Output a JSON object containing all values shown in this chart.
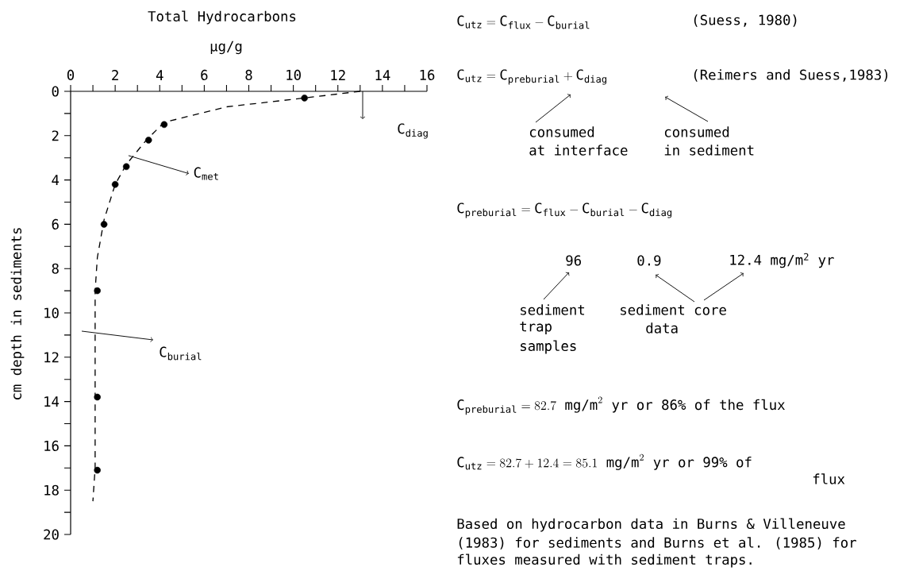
{
  "chart_data": {
    "type": "scatter",
    "title": "Total Hydrocarbons",
    "xlabel": "μg/g",
    "ylabel": "cm depth in sediments",
    "xlim": [
      0,
      16
    ],
    "ylim": [
      20,
      0
    ],
    "xticks": [
      0,
      {
        "value": 1,
        "label": null
      },
      2,
      {
        "value": 3,
        "label": null
      },
      4,
      {
        "value": 5,
        "label": null
      },
      6,
      {
        "value": 7,
        "label": null
      },
      8,
      {
        "value": 9,
        "label": null
      },
      10,
      {
        "value": 11,
        "label": null
      },
      12,
      {
        "value": 13,
        "label": null
      },
      14,
      {
        "value": 15,
        "label": null
      },
      16
    ],
    "yticks": [
      0,
      {
        "value": 1,
        "label": null
      },
      2,
      {
        "value": 3,
        "label": null
      },
      4,
      {
        "value": 5,
        "label": null
      },
      6,
      {
        "value": 7,
        "label": null
      },
      8,
      {
        "value": 9,
        "label": null
      },
      10,
      {
        "value": 11,
        "label": null
      },
      12,
      {
        "value": 13,
        "label": null
      },
      14,
      {
        "value": 15,
        "label": null
      },
      16,
      {
        "value": 17,
        "label": null
      },
      18,
      {
        "value": 19,
        "label": null
      },
      20
    ],
    "grid": false,
    "marker": "circle",
    "series": [
      {
        "type": "line",
        "line_style": "dashed",
        "marker": "none",
        "color": "#000000",
        "x": [
          13,
          10.5,
          7,
          4.2,
          3.4,
          2.5,
          2.0,
          1.5,
          1.2,
          1.1,
          1.1,
          1.0
        ],
        "values": [
          0,
          0.3,
          0.7,
          1.4,
          2.2,
          3.3,
          4.2,
          5.8,
          7.5,
          9,
          17,
          18.5
        ]
      },
      {
        "color": "#000000",
        "x": [
          10.5,
          4.2,
          3.5,
          2.5,
          2.0,
          1.5,
          1.2,
          1.2,
          1.2
        ],
        "values": [
          0.3,
          1.5,
          2.2,
          3.4,
          4.2,
          6.0,
          9.0,
          13.8,
          17.1
        ]
      }
    ],
    "annotations": [
      {
        "text": "C$_{met}$",
        "x": 2.6,
        "y": 2.9
      },
      "C$_{burial}$",
      "C$_{diag}$",
      "\\mathrm{C}_{\\mathrm{utz}} = \\mathrm{C}_{\\mathrm{flux}} - \\mathrm{C}_{\\mathrm{burial}}",
      "(Suess, 1980)",
      "\\mathrm{C}_{\\mathrm{utz}} = \\mathrm{C}_{\\mathrm{preburial}} + \\mathrm{C}_{\\mathrm{diag}}",
      "(Reimers and Suess,1983)",
      "consumed",
      "at interface",
      "consumed",
      "in sediment",
      "\\mathrm{C}_{\\mathrm{preburial}} = \\mathrm{C}_{\\mathrm{flux}} - \\mathrm{C}_{\\mathrm{burial}} - \\mathrm{C}_{\\mathrm{diag}}",
      "96",
      "0.9",
      "12.4 mg/m$^{2}$ yr",
      "sediment",
      "trap",
      "samples",
      "sediment core",
      "data",
      "\\mathrm{C}_{\\mathrm{preburial}} = 82.7\\text{ mg/m}^{2}\\text{ yr or 86\\% of the flux}",
      "\\mathrm{C}_{\\mathrm{utz}} = 82.7 + 12.4 = 85.1\\text{ mg/m}^{2}\\text{ yr or 99\\% of}",
      "flux",
      "Based on hydrocarbon data in Burns & Villeneuve",
      "(1983) for sediments and Burns et al. (1985) for",
      "fluxes measured with sediment traps."
    ]
  }
}
